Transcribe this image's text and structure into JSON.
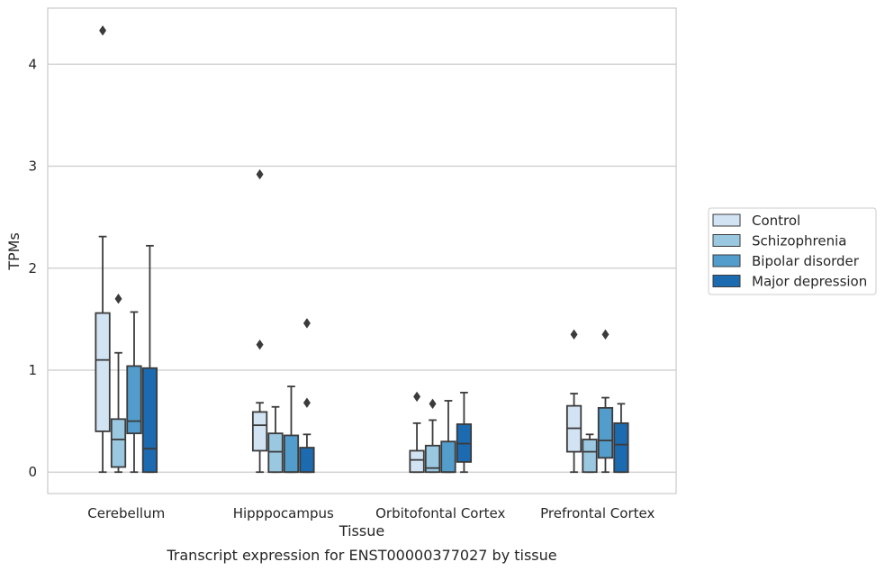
{
  "chart_data": {
    "type": "boxplot",
    "title": "",
    "caption": "Transcript expression for ENST00000377027 by tissue",
    "xlabel": "Tissue",
    "ylabel": "TPMs",
    "ylim": [
      -0.21,
      4.55
    ],
    "yticks": [
      0,
      1,
      2,
      3,
      4
    ],
    "grid": "horizontal",
    "legend_position": "right",
    "categories": [
      "Cerebellum",
      "Hipppocampus",
      "Orbitofontal Cortex",
      "Prefrontal Cortex"
    ],
    "series": [
      {
        "name": "Control",
        "color": "#d2e3f3",
        "boxes": [
          {
            "whisker_low": 0.0,
            "q1": 0.4,
            "median": 1.1,
            "q3": 1.56,
            "whisker_high": 2.31,
            "outliers": [
              4.33
            ]
          },
          {
            "whisker_low": 0.0,
            "q1": 0.21,
            "median": 0.46,
            "q3": 0.59,
            "whisker_high": 0.68,
            "outliers": [
              1.25,
              2.92
            ]
          },
          {
            "whisker_low": 0.0,
            "q1": 0.0,
            "median": 0.12,
            "q3": 0.21,
            "whisker_high": 0.48,
            "outliers": [
              0.74
            ]
          },
          {
            "whisker_low": 0.0,
            "q1": 0.2,
            "median": 0.43,
            "q3": 0.65,
            "whisker_high": 0.77,
            "outliers": [
              1.35
            ]
          }
        ]
      },
      {
        "name": "Schizophrenia",
        "color": "#9ac8e0",
        "boxes": [
          {
            "whisker_low": 0.0,
            "q1": 0.05,
            "median": 0.32,
            "q3": 0.52,
            "whisker_high": 1.17,
            "outliers": [
              1.7
            ]
          },
          {
            "whisker_low": 0.0,
            "q1": 0.0,
            "median": 0.2,
            "q3": 0.38,
            "whisker_high": 0.64,
            "outliers": []
          },
          {
            "whisker_low": 0.0,
            "q1": 0.0,
            "median": 0.04,
            "q3": 0.26,
            "whisker_high": 0.51,
            "outliers": [
              0.67
            ]
          },
          {
            "whisker_low": 0.0,
            "q1": 0.0,
            "median": 0.2,
            "q3": 0.32,
            "whisker_high": 0.37,
            "outliers": []
          }
        ]
      },
      {
        "name": "Bipolar disorder",
        "color": "#529dcc",
        "boxes": [
          {
            "whisker_low": 0.0,
            "q1": 0.38,
            "median": 0.5,
            "q3": 1.04,
            "whisker_high": 1.57,
            "outliers": []
          },
          {
            "whisker_low": 0.0,
            "q1": 0.0,
            "median": 0.0,
            "q3": 0.36,
            "whisker_high": 0.84,
            "outliers": []
          },
          {
            "whisker_low": 0.0,
            "q1": 0.0,
            "median": 0.0,
            "q3": 0.3,
            "whisker_high": 0.7,
            "outliers": []
          },
          {
            "whisker_low": 0.0,
            "q1": 0.14,
            "median": 0.31,
            "q3": 0.63,
            "whisker_high": 0.73,
            "outliers": [
              1.35
            ]
          }
        ]
      },
      {
        "name": "Major depression",
        "color": "#1c6aaf",
        "boxes": [
          {
            "whisker_low": 0.0,
            "q1": 0.0,
            "median": 0.23,
            "q3": 1.02,
            "whisker_high": 2.22,
            "outliers": []
          },
          {
            "whisker_low": 0.0,
            "q1": 0.0,
            "median": 0.0,
            "q3": 0.24,
            "whisker_high": 0.37,
            "outliers": [
              0.68,
              1.46
            ]
          },
          {
            "whisker_low": 0.0,
            "q1": 0.1,
            "median": 0.28,
            "q3": 0.47,
            "whisker_high": 0.78,
            "outliers": []
          },
          {
            "whisker_low": 0.0,
            "q1": 0.0,
            "median": 0.27,
            "q3": 0.48,
            "whisker_high": 0.67,
            "outliers": []
          }
        ]
      }
    ]
  }
}
